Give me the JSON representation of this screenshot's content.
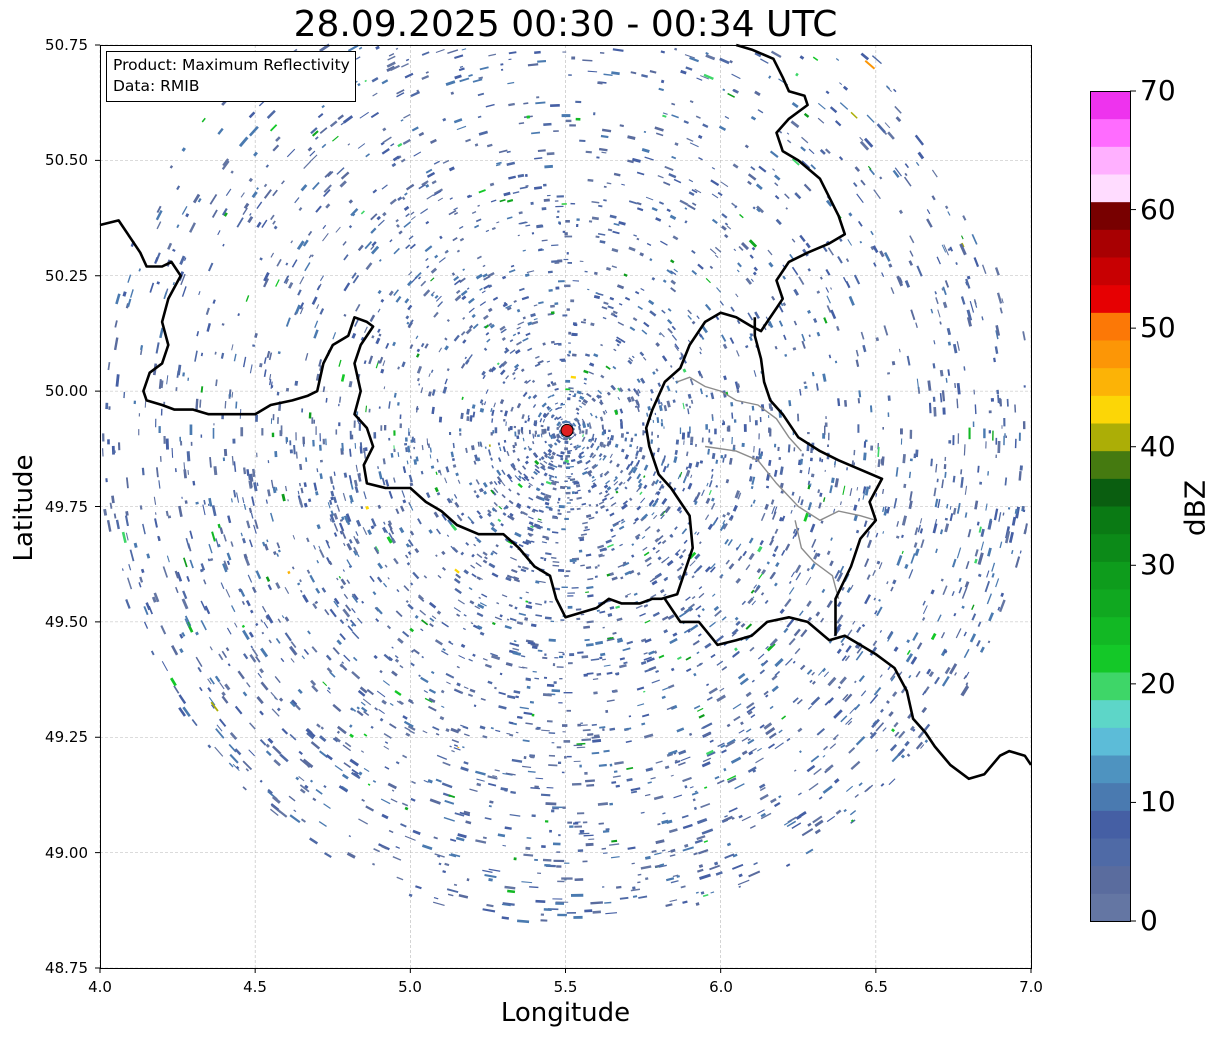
{
  "title": "28.09.2025 00:30 - 00:34 UTC",
  "map": {
    "type": "radar map",
    "grid": true,
    "lon_range": [
      4.0,
      7.0
    ],
    "lat_range": [
      48.75,
      50.75
    ],
    "xlabel": "Longitude",
    "ylabel": "Latitude",
    "x_ticks": [
      "4.0",
      "4.5",
      "5.0",
      "5.5",
      "6.0",
      "6.5",
      "7.0"
    ],
    "y_ticks": [
      "50.75",
      "50.50",
      "50.25",
      "50.00",
      "49.75",
      "49.50",
      "49.25",
      "49.00",
      "48.75"
    ],
    "radar_site": {
      "lon": 5.505,
      "lat": 49.915,
      "color": "#e02020"
    },
    "borders": [
      [
        [
          4.0,
          50.36
        ],
        [
          4.06,
          50.37
        ],
        [
          4.1,
          50.33
        ],
        [
          4.13,
          50.3
        ],
        [
          4.15,
          50.27
        ],
        [
          4.2,
          50.27
        ],
        [
          4.23,
          50.28
        ],
        [
          4.26,
          50.25
        ],
        [
          4.22,
          50.2
        ],
        [
          4.2,
          50.15
        ],
        [
          4.22,
          50.1
        ],
        [
          4.2,
          50.06
        ],
        [
          4.16,
          50.04
        ],
        [
          4.14,
          50.0
        ],
        [
          4.15,
          49.98
        ],
        [
          4.2,
          49.97
        ],
        [
          4.24,
          49.96
        ],
        [
          4.3,
          49.96
        ],
        [
          4.35,
          49.95
        ],
        [
          4.45,
          49.95
        ],
        [
          4.5,
          49.95
        ],
        [
          4.55,
          49.97
        ],
        [
          4.62,
          49.98
        ],
        [
          4.67,
          49.99
        ],
        [
          4.7,
          50.0
        ],
        [
          4.72,
          50.06
        ],
        [
          4.75,
          50.1
        ],
        [
          4.8,
          50.12
        ],
        [
          4.82,
          50.16
        ],
        [
          4.86,
          50.15
        ],
        [
          4.88,
          50.14
        ],
        [
          4.84,
          50.1
        ],
        [
          4.82,
          50.06
        ],
        [
          4.84,
          50.0
        ],
        [
          4.82,
          49.95
        ],
        [
          4.86,
          49.92
        ],
        [
          4.88,
          49.88
        ],
        [
          4.85,
          49.84
        ],
        [
          4.86,
          49.8
        ],
        [
          4.92,
          49.79
        ],
        [
          5.0,
          49.79
        ],
        [
          5.05,
          49.76
        ],
        [
          5.1,
          49.74
        ],
        [
          5.15,
          49.71
        ],
        [
          5.22,
          49.69
        ],
        [
          5.3,
          49.69
        ],
        [
          5.35,
          49.66
        ],
        [
          5.4,
          49.62
        ],
        [
          5.45,
          49.6
        ],
        [
          5.47,
          49.55
        ],
        [
          5.5,
          49.51
        ],
        [
          5.55,
          49.52
        ],
        [
          5.6,
          49.53
        ],
        [
          5.64,
          49.55
        ],
        [
          5.68,
          49.54
        ],
        [
          5.74,
          49.54
        ],
        [
          5.78,
          49.55
        ],
        [
          5.81,
          49.55
        ],
        [
          5.86,
          49.56
        ],
        [
          5.88,
          49.6
        ],
        [
          5.91,
          49.66
        ],
        [
          5.9,
          49.73
        ],
        [
          5.88,
          49.75
        ],
        [
          5.84,
          49.79
        ],
        [
          5.8,
          49.82
        ],
        [
          5.77,
          49.88
        ],
        [
          5.76,
          49.92
        ],
        [
          5.78,
          49.96
        ],
        [
          5.82,
          50.02
        ],
        [
          5.87,
          50.05
        ],
        [
          5.9,
          50.1
        ],
        [
          5.95,
          50.15
        ],
        [
          6.0,
          50.17
        ],
        [
          6.05,
          50.16
        ],
        [
          6.1,
          50.14
        ],
        [
          6.13,
          50.13
        ],
        [
          6.15,
          50.15
        ],
        [
          6.18,
          50.18
        ],
        [
          6.2,
          50.2
        ],
        [
          6.18,
          50.24
        ],
        [
          6.22,
          50.28
        ],
        [
          6.28,
          50.3
        ],
        [
          6.35,
          50.32
        ],
        [
          6.4,
          50.34
        ],
        [
          6.38,
          50.38
        ],
        [
          6.35,
          50.42
        ],
        [
          6.32,
          50.46
        ],
        [
          6.25,
          50.5
        ],
        [
          6.2,
          50.52
        ],
        [
          6.18,
          50.56
        ],
        [
          6.22,
          50.59
        ],
        [
          6.28,
          50.62
        ],
        [
          6.27,
          50.64
        ],
        [
          6.22,
          50.65
        ],
        [
          6.2,
          50.68
        ],
        [
          6.17,
          50.72
        ],
        [
          6.1,
          50.74
        ],
        [
          6.05,
          50.75
        ]
      ],
      [
        [
          5.82,
          49.55
        ],
        [
          5.87,
          49.5
        ],
        [
          5.93,
          49.5
        ],
        [
          5.99,
          49.45
        ],
        [
          6.05,
          49.46
        ],
        [
          6.1,
          49.47
        ],
        [
          6.15,
          49.5
        ],
        [
          6.22,
          49.51
        ],
        [
          6.28,
          49.5
        ],
        [
          6.35,
          49.46
        ],
        [
          6.4,
          49.47
        ],
        [
          6.45,
          49.45
        ],
        [
          6.5,
          49.43
        ],
        [
          6.56,
          49.4
        ],
        [
          6.6,
          49.35
        ],
        [
          6.62,
          49.29
        ],
        [
          6.66,
          49.26
        ],
        [
          6.69,
          49.23
        ],
        [
          6.74,
          49.19
        ],
        [
          6.8,
          49.16
        ],
        [
          6.85,
          49.17
        ],
        [
          6.9,
          49.21
        ],
        [
          6.93,
          49.22
        ],
        [
          6.98,
          49.21
        ],
        [
          7.0,
          49.19
        ]
      ],
      [
        [
          6.37,
          49.47
        ],
        [
          6.37,
          49.55
        ],
        [
          6.42,
          49.62
        ],
        [
          6.45,
          49.68
        ],
        [
          6.5,
          49.72
        ],
        [
          6.48,
          49.76
        ],
        [
          6.52,
          49.81
        ],
        [
          6.45,
          49.83
        ],
        [
          6.38,
          49.85
        ],
        [
          6.32,
          49.87
        ],
        [
          6.25,
          49.9
        ],
        [
          6.2,
          49.95
        ],
        [
          6.16,
          49.98
        ],
        [
          6.14,
          50.02
        ],
        [
          6.13,
          50.07
        ],
        [
          6.11,
          50.12
        ],
        [
          6.11,
          50.16
        ]
      ]
    ],
    "border_color": "#000000",
    "grey_line_color": "#8c8c8c",
    "grey_lines": [
      [
        [
          5.86,
          50.02
        ],
        [
          5.9,
          50.03
        ],
        [
          5.95,
          50.01
        ],
        [
          6.0,
          50.0
        ],
        [
          6.05,
          49.98
        ],
        [
          6.12,
          49.97
        ],
        [
          6.18,
          49.94
        ],
        [
          6.22,
          49.9
        ],
        [
          6.26,
          49.87
        ]
      ],
      [
        [
          5.95,
          49.88
        ],
        [
          6.05,
          49.87
        ],
        [
          6.12,
          49.85
        ],
        [
          6.18,
          49.8
        ],
        [
          6.25,
          49.75
        ],
        [
          6.32,
          49.72
        ],
        [
          6.38,
          49.74
        ],
        [
          6.45,
          49.73
        ],
        [
          6.5,
          49.72
        ]
      ],
      [
        [
          6.24,
          49.72
        ],
        [
          6.26,
          49.66
        ],
        [
          6.3,
          49.63
        ],
        [
          6.36,
          49.6
        ],
        [
          6.38,
          49.55
        ]
      ]
    ],
    "echo_seed": 20250928
  },
  "infobox": {
    "line1": "Product: Maximum Reflectivity",
    "line2": "Data: RMIB"
  },
  "colorbar": {
    "label": "dBZ",
    "min": 0,
    "max": 70,
    "ticks": [
      "0",
      "10",
      "20",
      "30",
      "40",
      "50",
      "60",
      "70"
    ],
    "colors": [
      "#6476a3",
      "#5a6c9e",
      "#4f6aa6",
      "#455fa4",
      "#4a7ab0",
      "#4e93c0",
      "#5cbcd8",
      "#5dd6c8",
      "#3ed668",
      "#14c828",
      "#12b824",
      "#10a820",
      "#0e9c1c",
      "#0c8a18",
      "#0a7a14",
      "#0a5e10",
      "#457a10",
      "#acae06",
      "#fcd606",
      "#fcb306",
      "#fc9606",
      "#fc7806",
      "#e60002",
      "#c80002",
      "#a80002",
      "#780000",
      "#ffdcff",
      "#ffb0ff",
      "#ff6cff",
      "#ee33ee"
    ]
  }
}
